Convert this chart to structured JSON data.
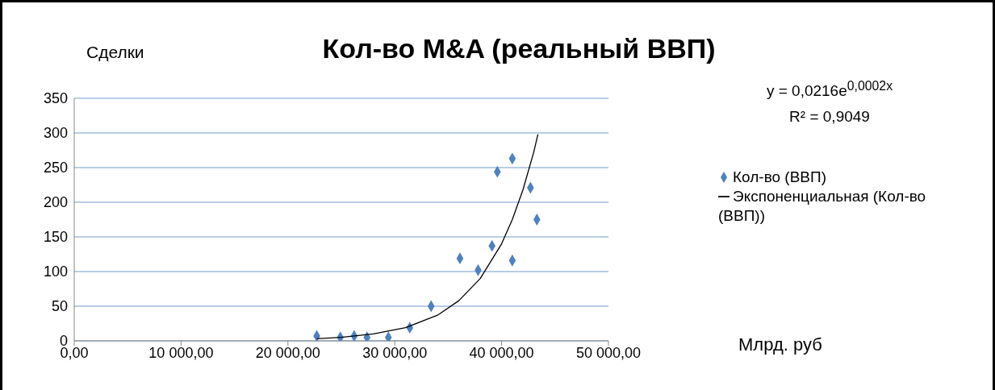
{
  "chart_data": {
    "type": "scatter",
    "title": "Кол-во M&A (реальный ВВП)",
    "ylabel": "Сделки",
    "annotations": [
      "y = 0,0216e$^{0,0002x}$",
      "R² = 0,9049",
      "Млрд. руб"
    ],
    "xlim": [
      0,
      50000
    ],
    "xticks": [
      {
        "value": 0,
        "label": "0,00"
      },
      {
        "value": 10000,
        "label": "10 000,00"
      },
      {
        "value": 20000,
        "label": "20 000,00"
      },
      {
        "value": 30000,
        "label": "30 000,00"
      },
      {
        "value": 40000,
        "label": "40 000,00"
      },
      {
        "value": 50000,
        "label": "50 000,00"
      }
    ],
    "ylim": [
      0,
      350
    ],
    "yticks": [
      0,
      50,
      100,
      150,
      200,
      250,
      300,
      350
    ],
    "grid": "y",
    "legend": "right",
    "marker": "diamond",
    "series": [
      {
        "name": "Кол-во (ВВП)",
        "color": "#4f81bd",
        "x": [
          22700,
          24900,
          26200,
          27400,
          29400,
          31400,
          33400,
          36100,
          37800,
          39100,
          39600,
          41000,
          41000,
          42700,
          43300
        ],
        "values": [
          7,
          5,
          7,
          5,
          5,
          19,
          50,
          119,
          102,
          137,
          244,
          263,
          116,
          221,
          175
        ]
      },
      {
        "name": "Экспоненциальная (Кол-во (ВВП))",
        "type": "line",
        "color": "#000000",
        "line_style": "solid",
        "marker": "none",
        "x": [
          22700,
          25000,
          28000,
          31000,
          34000,
          36000,
          38000,
          40000,
          41000,
          42000,
          43000,
          43400
        ],
        "values": [
          3,
          5,
          10,
          19,
          37,
          58,
          90,
          140,
          175,
          218,
          272,
          298
        ]
      }
    ]
  }
}
